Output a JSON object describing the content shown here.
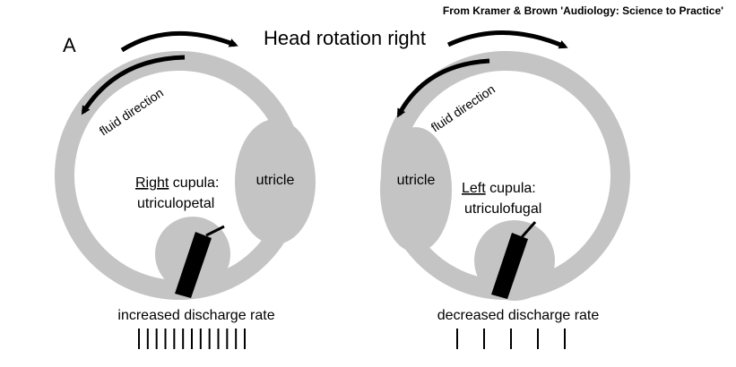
{
  "credit": "From Kramer & Brown 'Audiology: Science to Practice'",
  "panel_letter": "A",
  "title": "Head rotation right",
  "left_panel": {
    "fluid_label": "fluid direction",
    "utricle_label": "utricle",
    "cupula_word": "Right",
    "cupula_suffix": " cupula:",
    "cupula_type": "utriculopetal",
    "discharge_label": "increased discharge rate",
    "spike_count": 13
  },
  "right_panel": {
    "fluid_label": "fluid direction",
    "utricle_label": "utricle",
    "cupula_word": "Left",
    "cupula_suffix": " cupula:",
    "cupula_type": "utriculofugal",
    "discharge_label": "decreased discharge rate",
    "spike_count": 5
  },
  "colors": {
    "canal": "#c4c4c4",
    "ink": "#000000",
    "background": "#ffffff"
  }
}
